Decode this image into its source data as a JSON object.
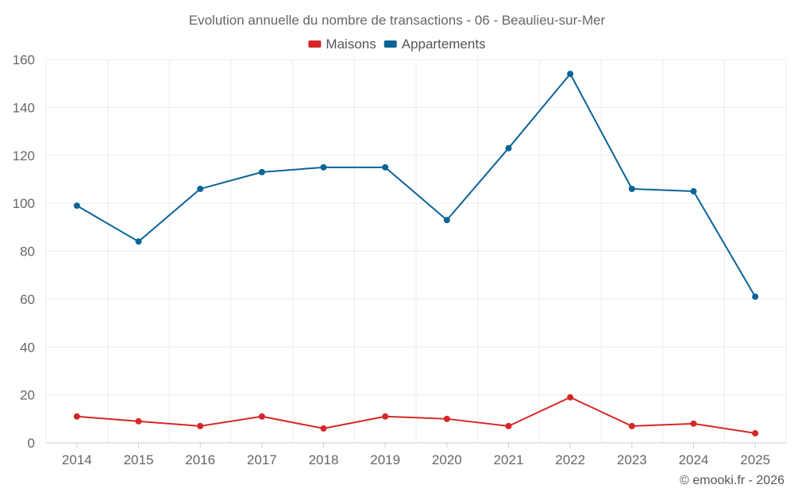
{
  "chart_data": {
    "type": "line",
    "title": "Evolution annuelle du nombre de transactions - 06 - Beaulieu-sur-Mer",
    "xlabel": "",
    "ylabel": "",
    "categories": [
      "2014",
      "2015",
      "2016",
      "2017",
      "2018",
      "2019",
      "2020",
      "2021",
      "2022",
      "2023",
      "2024",
      "2025"
    ],
    "ylim": [
      0,
      160
    ],
    "yticks": [
      0,
      20,
      40,
      60,
      80,
      100,
      120,
      140,
      160
    ],
    "grid": true,
    "legend_position": "top-center",
    "series": [
      {
        "name": "Maisons",
        "color": "#d62728",
        "values": [
          11,
          9,
          7,
          11,
          6,
          11,
          10,
          7,
          19,
          7,
          8,
          4
        ]
      },
      {
        "name": "Appartements",
        "color": "#0b6496",
        "values": [
          99,
          84,
          106,
          113,
          115,
          115,
          93,
          123,
          154,
          106,
          105,
          61
        ]
      }
    ]
  },
  "credit": "© emooki.fr - 2026"
}
